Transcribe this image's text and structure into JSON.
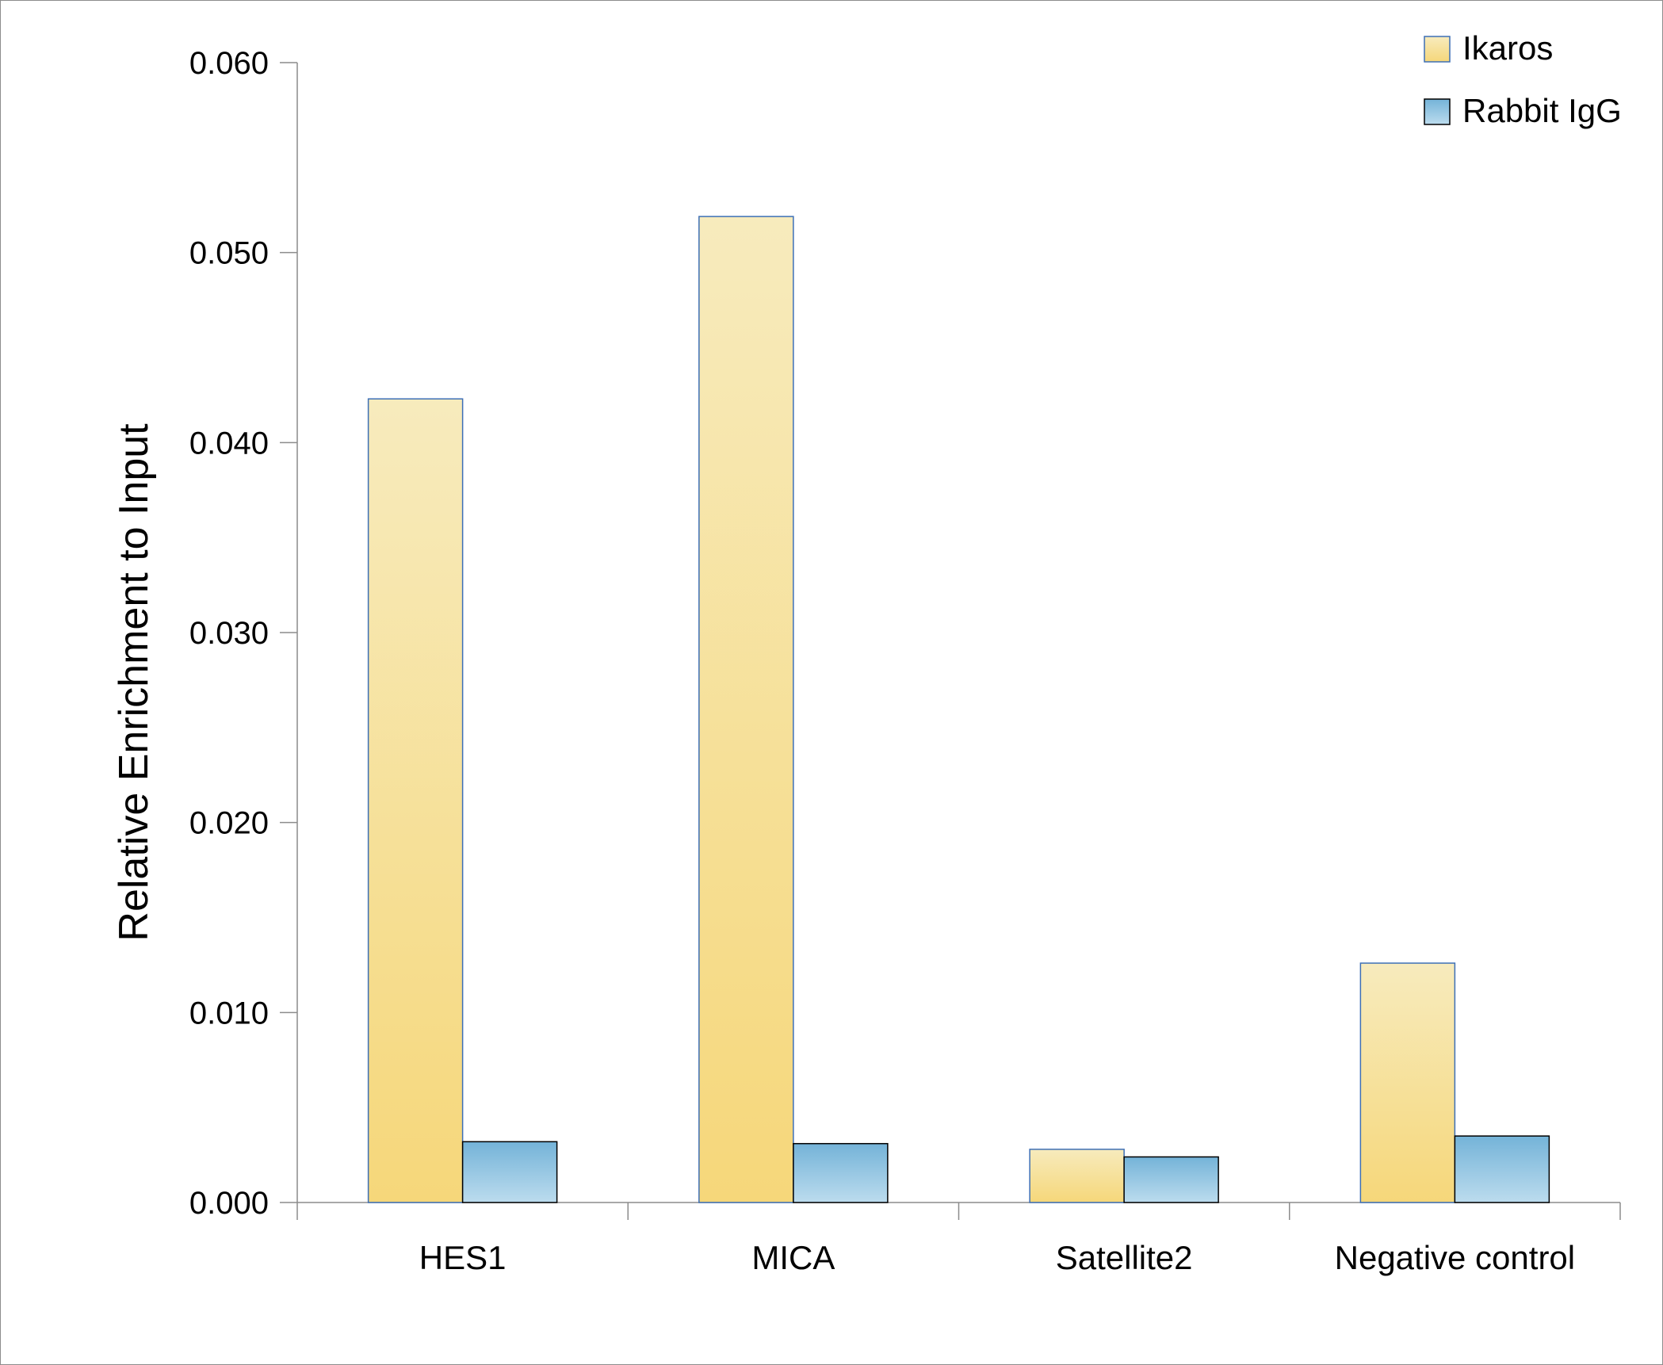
{
  "chart_data": {
    "type": "bar",
    "title": "",
    "xlabel": "",
    "ylabel": "Relative Enrichment to Input",
    "ylim": [
      0,
      0.06
    ],
    "yticks": [
      "0.000",
      "0.010",
      "0.020",
      "0.030",
      "0.040",
      "0.050",
      "0.060"
    ],
    "categories": [
      "HES1",
      "MICA",
      "Satellite2",
      "Negative control"
    ],
    "series": [
      {
        "name": "Ikaros",
        "values": [
          0.0423,
          0.0519,
          0.0028,
          0.0126
        ],
        "color": "#f6d77a"
      },
      {
        "name": "Rabbit IgG",
        "values": [
          0.0032,
          0.0031,
          0.0024,
          0.0035
        ],
        "color": "#7fb9da"
      }
    ],
    "legend": "top-right",
    "grid": false
  }
}
